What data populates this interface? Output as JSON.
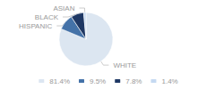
{
  "chart_data": {
    "type": "pie",
    "categories": [
      "WHITE",
      "HISPANIC",
      "BLACK",
      "ASIAN"
    ],
    "values": [
      81.4,
      9.5,
      7.8,
      1.4
    ],
    "value_labels": [
      "81.4%",
      "9.5%",
      "7.8%",
      "1.4%"
    ],
    "colors": [
      "#dce6f1",
      "#4472a8",
      "#1f3864",
      "#c5d9f1"
    ],
    "legend": "bottom"
  }
}
